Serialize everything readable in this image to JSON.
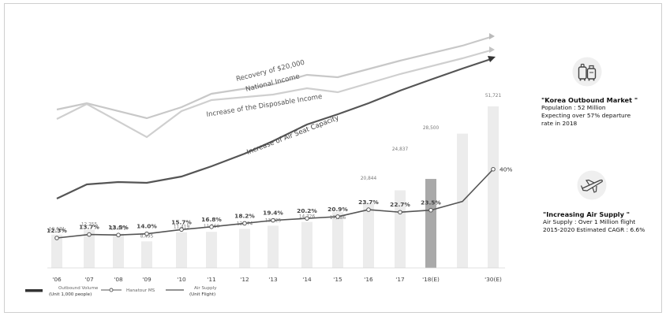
{
  "chart_data": {
    "type": "bar",
    "categories": [
      "'06",
      "'07",
      "'08",
      "'09",
      "'10",
      "'11",
      "'12",
      "'13",
      "'14",
      "'15",
      "'16",
      "'17",
      "'18(E)",
      "",
      "'30(E)"
    ],
    "series": [
      {
        "name": "Outbound Volume",
        "unit": "(Unit 1,000 people)",
        "values": [
          10671,
          12255,
          10973,
          8495,
          11419,
          11560,
          12474,
          13525,
          14726,
          17886,
          20844,
          24837,
          28500,
          43000,
          51721
        ],
        "labels": [
          "10,671",
          "12,255",
          "10,973",
          "8,495",
          "11,419",
          "11,560",
          "12,474",
          "13,525",
          "14,726",
          "17,886",
          "20,844",
          "24,837",
          "28,500",
          "",
          "51,721"
        ]
      },
      {
        "name": "Hanatour MS",
        "values": [
          12.3,
          13.7,
          13.5,
          14.0,
          15.7,
          16.8,
          18.2,
          19.4,
          20.2,
          20.9,
          23.7,
          22.7,
          23.5,
          27.0,
          40.0
        ],
        "labels": [
          "12.3%",
          "13.7%",
          "13.5%",
          "14.0%",
          "15.7%",
          "16.8%",
          "18.2%",
          "19.4%",
          "20.2%",
          "20.9%",
          "23.7%",
          "22.7%",
          "23.5%",
          "",
          "40%"
        ]
      },
      {
        "name": "Air Supply",
        "unit": "(Unit Flight)"
      }
    ],
    "highlight_index": 12,
    "trend_lines": [
      {
        "label": "Recovery of $20,000\nNational Income",
        "color": "#c8c8c8"
      },
      {
        "label": "Increase of the Disposable Income",
        "color": "#cfcfcf"
      },
      {
        "label": "Increase of Air Seat Capacity",
        "color": "#555555"
      }
    ],
    "colors": {
      "bar": "#ececec",
      "bar_highlight": "#a9a9a9",
      "ms_line": "#555555",
      "trend_dark": "#555555",
      "trend_light": "#cccccc"
    }
  },
  "info": {
    "market": {
      "title": "\"Korea Outbound Market \"",
      "lines": [
        "Population : 52 Million",
        "Expecting over 57% departure",
        "rate in 2018"
      ],
      "icon": "luggage-icon"
    },
    "air": {
      "title": "\"Increasing Air Supply \"",
      "lines": [
        "Air Supply : Over 1 Million flight",
        "2015-2020 Estimated CAGR : 6.6%"
      ],
      "icon": "airplane-icon"
    }
  }
}
